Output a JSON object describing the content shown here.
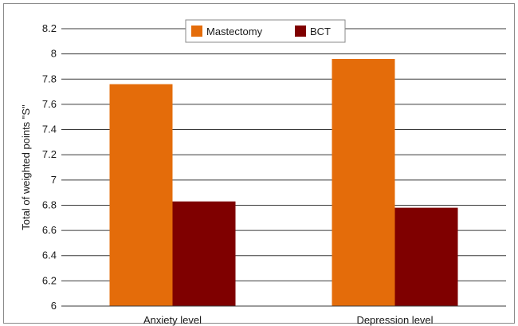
{
  "chart_data": {
    "type": "bar",
    "categories": [
      "Anxiety level",
      "Depression level"
    ],
    "series": [
      {
        "name": "Mastectomy",
        "values": [
          7.76,
          7.96
        ],
        "color": "#E46C0A"
      },
      {
        "name": "BCT",
        "values": [
          6.83,
          6.78
        ],
        "color": "#7F0000"
      }
    ],
    "xlabel": "",
    "ylabel": "Total of weighted points \"S\"",
    "ylim": [
      6,
      8.2
    ],
    "yticks": [
      "6",
      "6.2",
      "6.4",
      "6.6",
      "6.8",
      "7",
      "7.2",
      "7.4",
      "7.6",
      "7.8",
      "8",
      "8.2"
    ],
    "grid": true,
    "legend": "top-center"
  }
}
